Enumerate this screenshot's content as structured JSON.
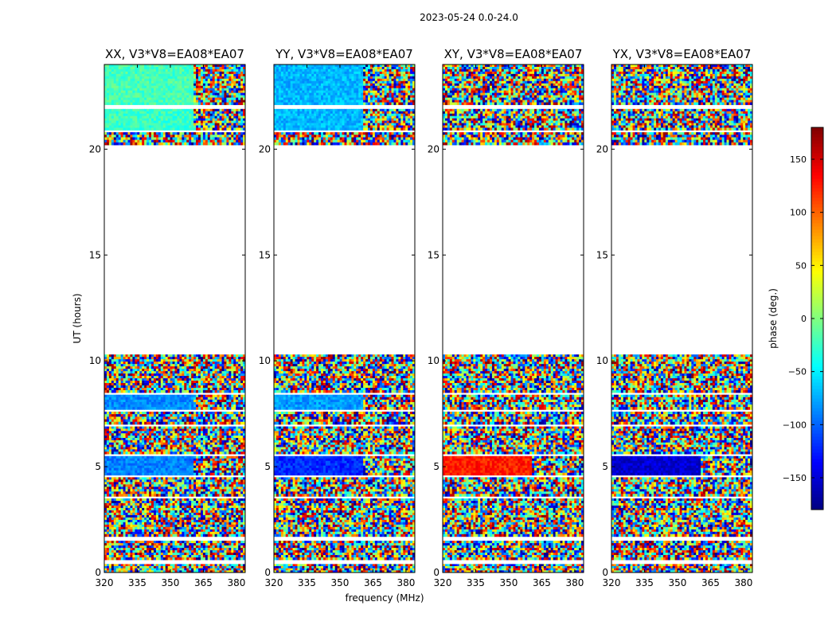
{
  "chart_data": {
    "type": "heatmap",
    "suptitle": "2023-05-24 0.0-24.0",
    "xlabel": "frequency (MHz)",
    "ylabel": "UT (hours)",
    "xlim": [
      320,
      384
    ],
    "ylim": [
      0,
      24
    ],
    "xticks": [
      320,
      335,
      350,
      365,
      380
    ],
    "yticks": [
      0,
      5,
      10,
      15,
      20
    ],
    "xtick_labels": [
      "320",
      "335",
      "350",
      "365",
      "380"
    ],
    "ytick_labels": [
      "0",
      "5",
      "10",
      "15",
      "20"
    ],
    "data_blocks_ut": [
      [
        0.0,
        0.4
      ],
      [
        0.6,
        1.5
      ],
      [
        1.7,
        3.5
      ],
      [
        3.6,
        4.5
      ],
      [
        4.6,
        5.5
      ],
      [
        5.6,
        6.9
      ],
      [
        7.0,
        7.6
      ],
      [
        7.7,
        8.4
      ],
      [
        8.5,
        10.3
      ],
      [
        20.2,
        20.8
      ],
      [
        20.9,
        21.9
      ],
      [
        22.1,
        24.0
      ]
    ],
    "narrow_band_boundary_mhz": 361,
    "panels": [
      {
        "title": "XX, V3*V8=EA08*EA07",
        "coherent_phase": [
          {
            "ut": [
              4.6,
              5.5
            ],
            "phase": -90
          },
          {
            "ut": [
              7.7,
              8.4
            ],
            "phase": -85
          },
          {
            "ut": [
              20.9,
              21.9
            ],
            "phase": -25
          },
          {
            "ut": [
              22.1,
              24.0
            ],
            "phase": -20
          }
        ]
      },
      {
        "title": "YY, V3*V8=EA08*EA07",
        "coherent_phase": [
          {
            "ut": [
              4.6,
              5.5
            ],
            "phase": -120
          },
          {
            "ut": [
              7.7,
              8.4
            ],
            "phase": -80
          },
          {
            "ut": [
              20.9,
              21.9
            ],
            "phase": -70
          },
          {
            "ut": [
              22.1,
              24.0
            ],
            "phase": -70
          }
        ]
      },
      {
        "title": "XY, V3*V8=EA08*EA07",
        "coherent_phase": [
          {
            "ut": [
              4.6,
              5.5
            ],
            "phase": 125
          }
        ]
      },
      {
        "title": "YX, V3*V8=EA08*EA07",
        "coherent_phase": [
          {
            "ut": [
              4.6,
              5.5
            ],
            "phase": -150
          }
        ]
      }
    ],
    "colorbar": {
      "label": "phase (deg.)",
      "range": [
        -180,
        180
      ],
      "ticks": [
        -150,
        -100,
        -50,
        0,
        50,
        100,
        150
      ],
      "tick_labels": [
        "−150",
        "−100",
        "−50",
        "0",
        "50",
        "100",
        "150"
      ],
      "colormap": "jet"
    }
  }
}
